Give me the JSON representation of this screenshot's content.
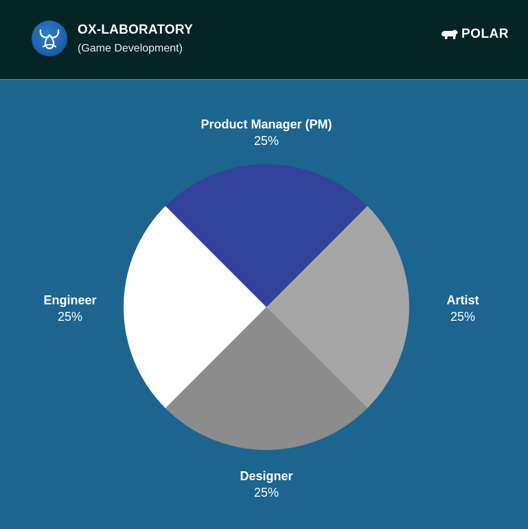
{
  "header": {
    "title": "OX-LABORATORY",
    "subtitle": "(Game Development)",
    "logo_icon": "ox-horns-icon",
    "partner_icon": "polar-bear-icon",
    "partner_name": "POLAR"
  },
  "colors": {
    "background": "#1c658f",
    "header_background": "#052424"
  },
  "chart_data": {
    "type": "pie",
    "title": "",
    "slices": [
      {
        "label": "Product Manager (PM)",
        "value": 25,
        "display": "25%",
        "color": "#33429c"
      },
      {
        "label": "Artist",
        "value": 25,
        "display": "25%",
        "color": "#a6a6a6"
      },
      {
        "label": "Designer",
        "value": 25,
        "display": "25%",
        "color": "#8c8c8c"
      },
      {
        "label": "Engineer",
        "value": 25,
        "display": "25%",
        "color": "#fdfefd"
      }
    ],
    "start_angle_deg": -135,
    "legend": "none"
  }
}
